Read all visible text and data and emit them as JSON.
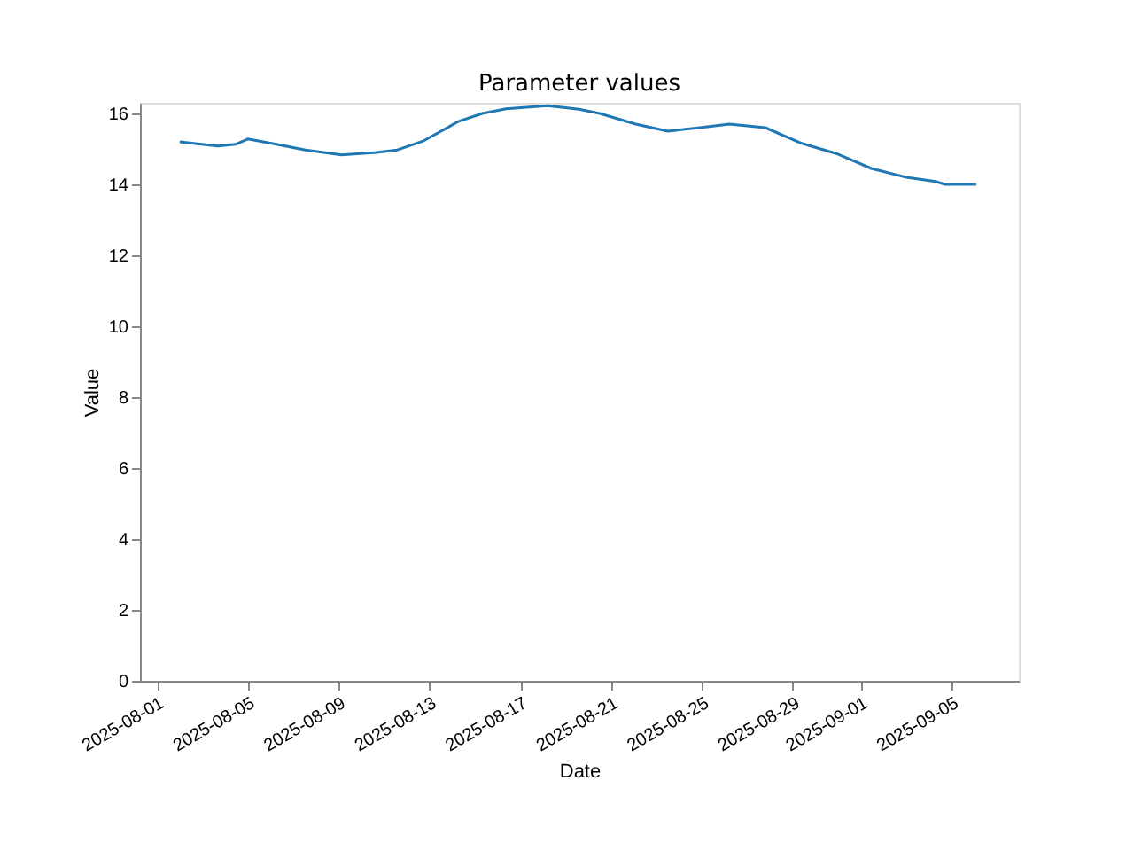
{
  "chart_data": {
    "type": "line",
    "title": "Parameter values",
    "xlabel": "Date",
    "ylabel": "Value",
    "x": [
      "2025-08-02T00:00",
      "2025-08-03T16:00",
      "2025-08-04T11:00",
      "2025-08-05T00:00",
      "2025-08-06T06:00",
      "2025-08-07T13:00",
      "2025-08-09T03:00",
      "2025-08-10T16:00",
      "2025-08-11T14:00",
      "2025-08-12T18:00",
      "2025-08-14T07:00",
      "2025-08-15T08:00",
      "2025-08-16T09:00",
      "2025-08-18T05:00",
      "2025-08-19T14:00",
      "2025-08-20T12:00",
      "2025-08-22T02:00",
      "2025-08-23T12:00",
      "2025-08-24T22:00",
      "2025-08-26T05:00",
      "2025-08-27T19:00",
      "2025-08-29T08:00",
      "2025-08-30T22:00",
      "2025-09-01T11:00",
      "2025-09-03T00:00",
      "2025-09-04T07:00",
      "2025-09-04T17:00",
      "2025-09-06T02:00"
    ],
    "series": [
      {
        "color": "#1f77b4",
        "values": [
          15.2,
          15.08,
          15.13,
          15.28,
          15.13,
          14.97,
          14.83,
          14.9,
          14.97,
          15.23,
          15.78,
          16.0,
          16.13,
          16.22,
          16.12,
          16.0,
          15.7,
          15.5,
          15.6,
          15.7,
          15.6,
          15.17,
          14.87,
          14.45,
          14.2,
          14.08,
          14.0,
          14.0
        ]
      }
    ],
    "xlim": [
      "2025-07-31T06:00",
      "2025-09-07T23:00"
    ],
    "xticks": [
      {
        "value": "2025-08-01",
        "label": "2025-08-01"
      },
      {
        "value": "2025-08-05",
        "label": "2025-08-05"
      },
      {
        "value": "2025-08-09",
        "label": "2025-08-09"
      },
      {
        "value": "2025-08-13",
        "label": "2025-08-13"
      },
      {
        "value": "2025-08-17",
        "label": "2025-08-17"
      },
      {
        "value": "2025-08-21",
        "label": "2025-08-21"
      },
      {
        "value": "2025-08-25",
        "label": "2025-08-25"
      },
      {
        "value": "2025-08-29",
        "label": "2025-08-29"
      },
      {
        "value": "2025-09-01",
        "label": "2025-09-01"
      },
      {
        "value": "2025-09-05",
        "label": "2025-09-05"
      }
    ],
    "ylim": [
      0,
      16.3
    ],
    "yticks": [
      0,
      2,
      4,
      6,
      8,
      10,
      12,
      14,
      16
    ],
    "grid": false,
    "line_style": "solid",
    "marker": "none"
  }
}
